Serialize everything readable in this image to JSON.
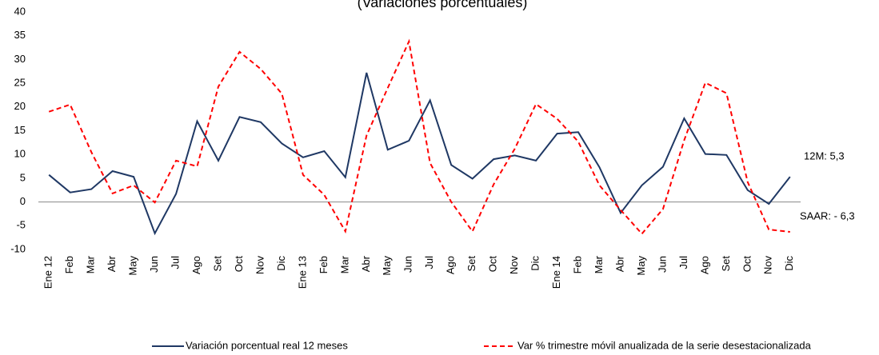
{
  "chart_data": {
    "type": "line",
    "subtitle": "(Variaciones porcentuales)",
    "categories": [
      "Ene 12",
      "Feb",
      "Mar",
      "Abr",
      "May",
      "Jun",
      "Jul",
      "Ago",
      "Set",
      "Oct",
      "Nov",
      "Dic",
      "Ene 13",
      "Feb",
      "Mar",
      "Abr",
      "May",
      "Jun",
      "Jul",
      "Ago",
      "Set",
      "Oct",
      "Nov",
      "Dic",
      "Ene 14",
      "Feb",
      "Mar",
      "Abr",
      "May",
      "Jun",
      "Jul",
      "Ago",
      "Set",
      "Oct",
      "Nov",
      "Dic"
    ],
    "series": [
      {
        "name": "Variación porcentual real 12 meses",
        "color": "#1f3864",
        "dash": false,
        "values": [
          5.7,
          2.0,
          2.7,
          6.5,
          5.3,
          -6.6,
          1.7,
          17.0,
          8.7,
          17.9,
          16.8,
          12.3,
          9.4,
          10.7,
          5.2,
          27.2,
          11.0,
          12.9,
          21.4,
          7.8,
          4.9,
          9.0,
          9.8,
          8.7,
          14.4,
          14.7,
          7.3,
          -2.3,
          3.5,
          7.4,
          17.6,
          10.1,
          9.9,
          2.5,
          -0.4,
          5.3
        ]
      },
      {
        "name": "Var %  trimestre móvil anualizada de la serie desestacionalizada",
        "color": "#ff0000",
        "dash": true,
        "values": [
          19.0,
          20.5,
          10.5,
          1.8,
          3.5,
          -0.1,
          8.7,
          7.5,
          24.3,
          31.6,
          28.0,
          22.8,
          5.7,
          1.5,
          -6.2,
          14.0,
          24.0,
          33.8,
          8.2,
          0.0,
          -6.2,
          3.7,
          11.2,
          20.6,
          17.5,
          12.7,
          3.5,
          -1.7,
          -6.7,
          -1.5,
          13.0,
          25.1,
          22.9,
          4.2,
          -5.8,
          -6.3
        ]
      }
    ],
    "annotations": [
      "12M: 5,3",
      "SAAR: - 6,3"
    ],
    "ylim": [
      -10,
      40
    ],
    "yticks": [
      -10,
      -5,
      0,
      5,
      10,
      15,
      20,
      25,
      30,
      35,
      40
    ]
  }
}
